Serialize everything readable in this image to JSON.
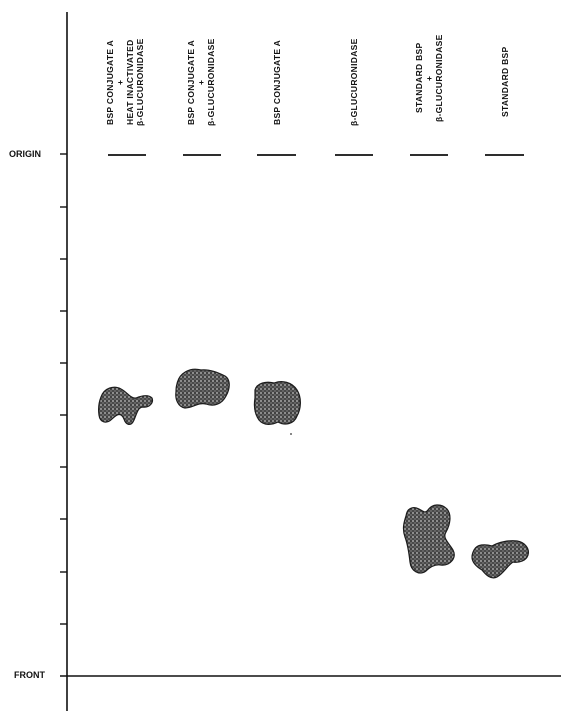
{
  "axis": {
    "origin_label": "ORIGIN",
    "front_label": "FRONT"
  },
  "lanes": [
    {
      "lines": [
        "BSP CONJUGATE A",
        "+",
        "HEAT INACTIVATED",
        "β-GLUCURONIDASE"
      ]
    },
    {
      "lines": [
        "BSP CONJUGATE A",
        "+",
        "β-GLUCURONIDASE"
      ]
    },
    {
      "lines": [
        "BSP CONJUGATE A"
      ]
    },
    {
      "lines": [
        "β-GLUCURONIDASE"
      ]
    },
    {
      "lines": [
        "STANDARD BSP",
        "+",
        "β-GLUCURONIDASE"
      ]
    },
    {
      "lines": [
        "STANDARD BSP"
      ]
    }
  ],
  "colors": {
    "ink": "#111111",
    "spot_dark": "#2a2a2a",
    "spot_mid": "#5a5a5a"
  }
}
